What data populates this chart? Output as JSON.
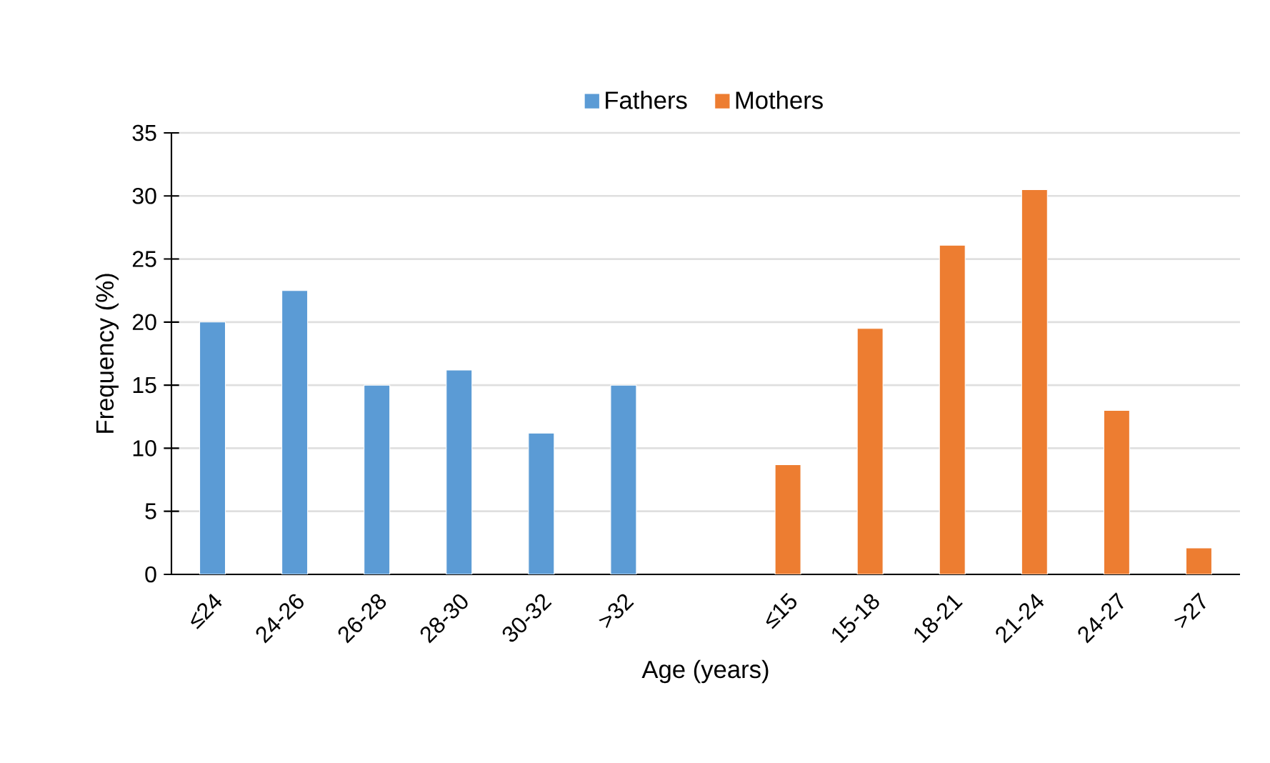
{
  "chart_data": {
    "type": "bar",
    "xlabel": "Age (years)",
    "ylabel": "Frequency (%)",
    "categories": [
      "≤24",
      "24-26",
      "26-28",
      "28-30",
      "30-32",
      ">32",
      null,
      "≤15",
      "15-18",
      "18-21",
      "21-24",
      "24-27",
      ">27"
    ],
    "series": [
      {
        "name": "Fathers",
        "color": "#5b9bd5",
        "values": [
          20,
          22.5,
          15,
          16.2,
          11.2,
          15,
          null,
          null,
          null,
          null,
          null,
          null,
          null
        ]
      },
      {
        "name": "Mothers",
        "color": "#ed7d31",
        "values": [
          null,
          null,
          null,
          null,
          null,
          null,
          null,
          8.7,
          19.5,
          26.1,
          30.5,
          13.0,
          2.1
        ]
      }
    ],
    "ylim": [
      0,
      35
    ],
    "yticks": [
      0,
      5,
      10,
      15,
      20,
      25,
      30,
      35
    ],
    "grid": "y",
    "legend": "top"
  }
}
